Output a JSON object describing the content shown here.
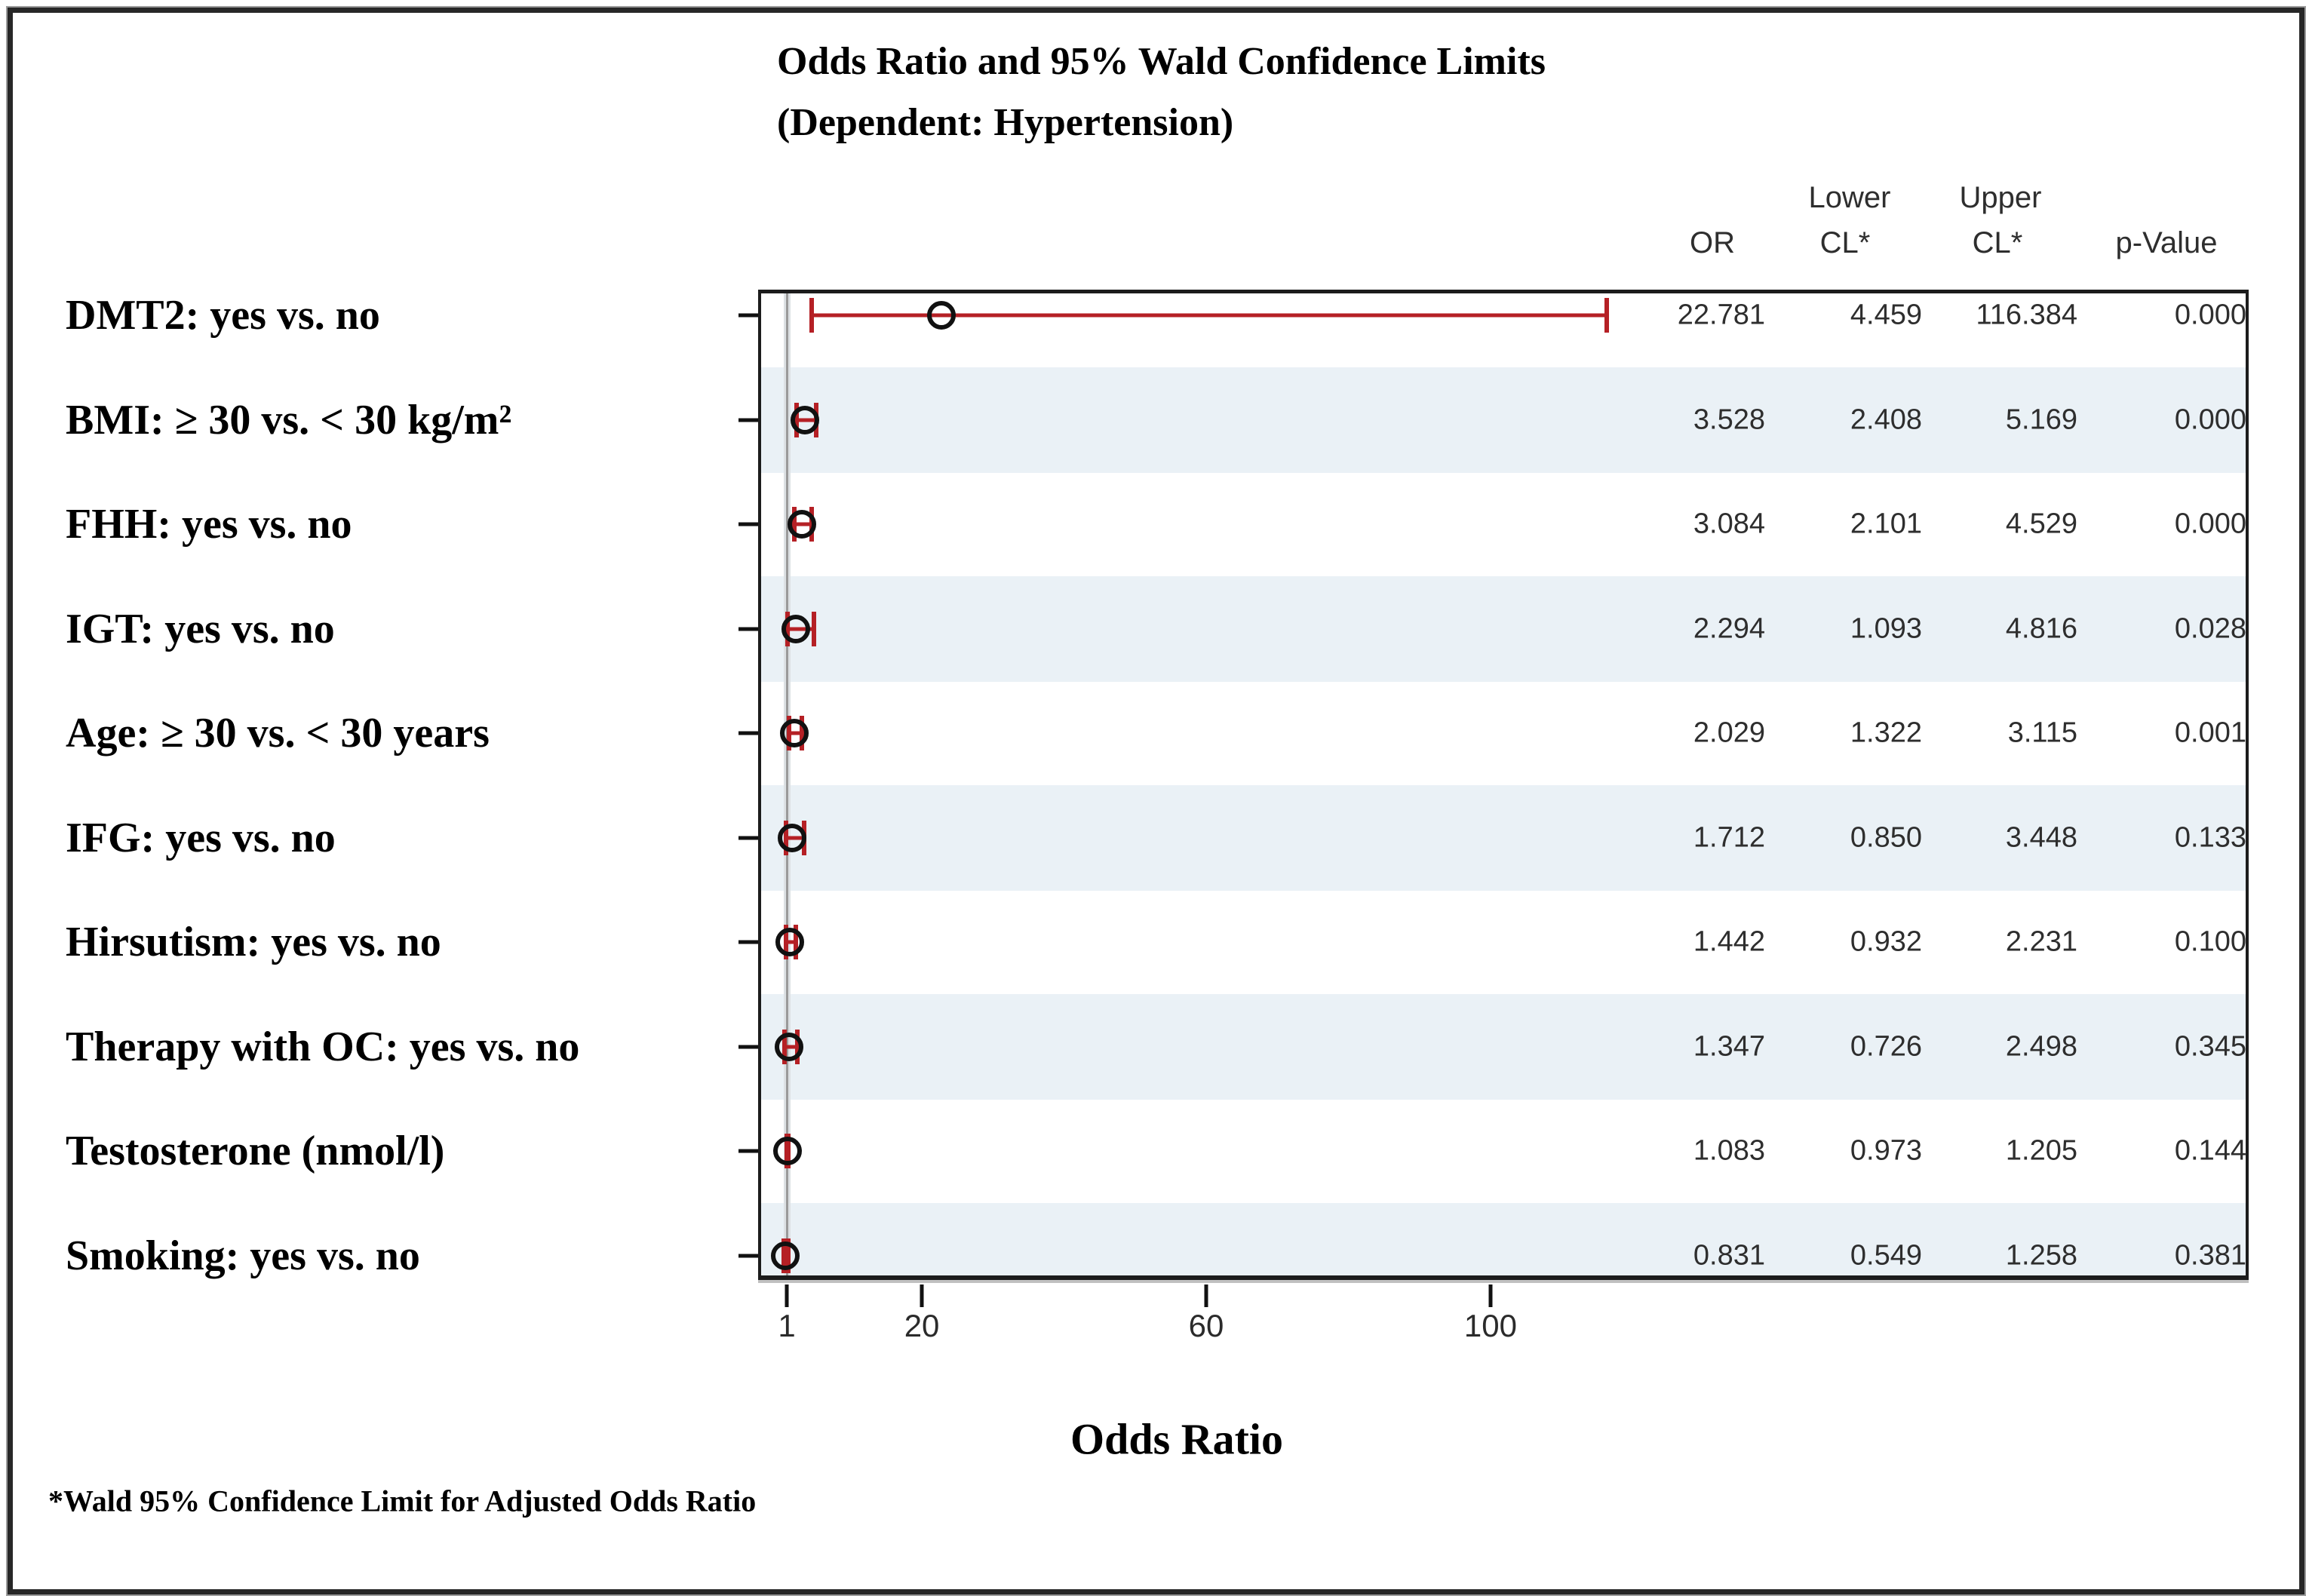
{
  "figure": {
    "title_line1": "Odds Ratio and 95% Wald Confidence Limits",
    "title_line2": "(Dependent: Hypertension)",
    "xaxis_title": "Odds Ratio",
    "footnote": "*Wald 95% Confidence Limit for Adjusted Odds Ratio"
  },
  "table": {
    "header": {
      "or": "OR",
      "lower_line1": "Lower",
      "lower_line2": "CL*",
      "upper_line1": "Upper",
      "upper_line2": "CL*",
      "pvalue": "p-Value"
    }
  },
  "colors": {
    "ci_red": "#B52025",
    "band_blue": "#EAF1F6",
    "refline_gray": "#9A9A9A",
    "marker_black": "#111111"
  },
  "chart_data": {
    "type": "forest",
    "title": "Odds Ratio and 95% Wald Confidence Limits (Dependent: Hypertension)",
    "xlabel": "Odds Ratio",
    "x_ticks": [
      1,
      20,
      60,
      100
    ],
    "x_scale": "linear",
    "reference_line": 1,
    "legend": "none",
    "rows": [
      {
        "label": "DMT2: yes vs. no",
        "or": 22.781,
        "lower": 4.459,
        "upper": 116.384,
        "or_text": "22.781",
        "lower_text": "4.459",
        "upper_text": "116.384",
        "p_text": "0.000",
        "shaded": false
      },
      {
        "label": "BMI:  ≥ 30 vs. < 30 kg/m²",
        "or": 3.528,
        "lower": 2.408,
        "upper": 5.169,
        "or_text": "3.528",
        "lower_text": "2.408",
        "upper_text": "5.169",
        "p_text": "0.000",
        "shaded": true
      },
      {
        "label": "FHH: yes vs. no",
        "or": 3.084,
        "lower": 2.101,
        "upper": 4.529,
        "or_text": "3.084",
        "lower_text": "2.101",
        "upper_text": "4.529",
        "p_text": "0.000",
        "shaded": false
      },
      {
        "label": "IGT: yes vs. no",
        "or": 2.294,
        "lower": 1.093,
        "upper": 4.816,
        "or_text": "2.294",
        "lower_text": "1.093",
        "upper_text": "4.816",
        "p_text": "0.028",
        "shaded": true
      },
      {
        "label": "Age:  ≥ 30 vs. < 30 years",
        "or": 2.029,
        "lower": 1.322,
        "upper": 3.115,
        "or_text": "2.029",
        "lower_text": "1.322",
        "upper_text": "3.115",
        "p_text": "0.001",
        "shaded": false
      },
      {
        "label": "IFG: yes vs. no",
        "or": 1.712,
        "lower": 0.85,
        "upper": 3.448,
        "or_text": "1.712",
        "lower_text": "0.850",
        "upper_text": "3.448",
        "p_text": "0.133",
        "shaded": true
      },
      {
        "label": "Hirsutism: yes vs. no",
        "or": 1.442,
        "lower": 0.932,
        "upper": 2.231,
        "or_text": "1.442",
        "lower_text": "0.932",
        "upper_text": "2.231",
        "p_text": "0.100",
        "shaded": false
      },
      {
        "label": "Therapy with OC: yes vs. no",
        "or": 1.347,
        "lower": 0.726,
        "upper": 2.498,
        "or_text": "1.347",
        "lower_text": "0.726",
        "upper_text": "2.498",
        "p_text": "0.345",
        "shaded": true
      },
      {
        "label": "Testosterone (nmol/l)",
        "or": 1.083,
        "lower": 0.973,
        "upper": 1.205,
        "or_text": "1.083",
        "lower_text": "0.973",
        "upper_text": "1.205",
        "p_text": "0.144",
        "shaded": false
      },
      {
        "label": "Smoking: yes vs. no",
        "or": 0.831,
        "lower": 0.549,
        "upper": 1.258,
        "or_text": "0.831",
        "lower_text": "0.549",
        "upper_text": "1.258",
        "p_text": "0.381",
        "shaded": true
      }
    ]
  }
}
